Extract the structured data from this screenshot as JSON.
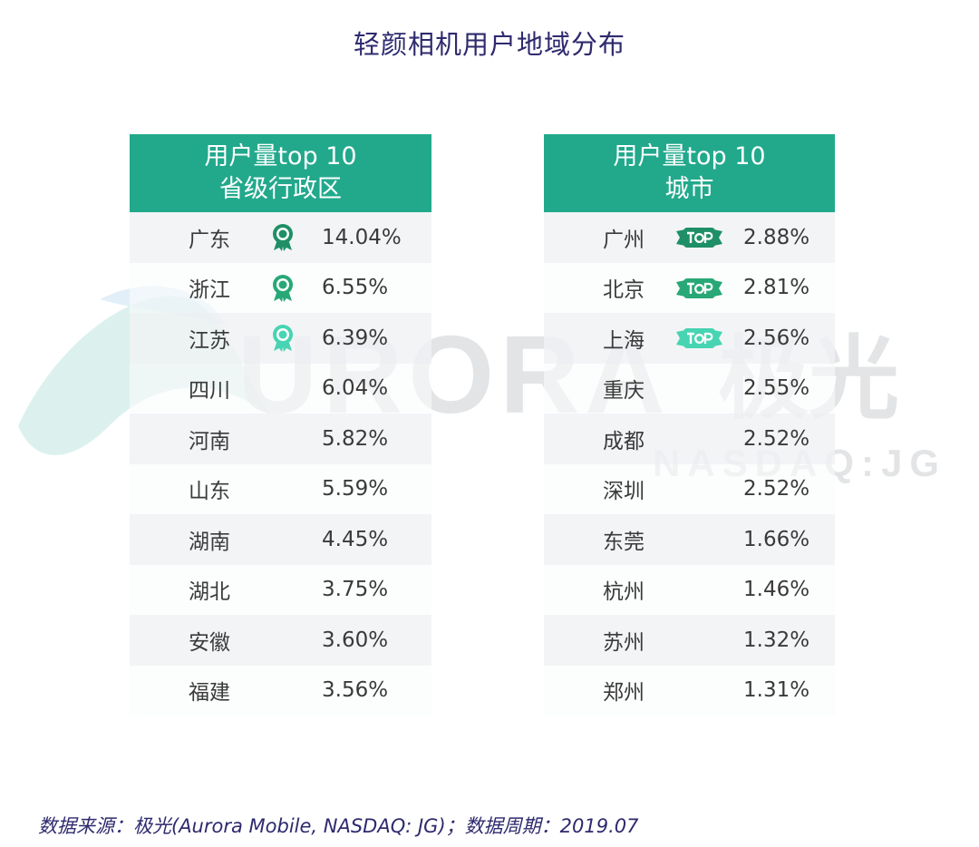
{
  "title": "轻颜相机用户地域分布",
  "watermark": {
    "brand": "URORA",
    "brand_cn": "极光",
    "sub": "NASDAQ:JG"
  },
  "colors": {
    "header": "#22a98c",
    "rank1": "#1e8f66",
    "rank2": "#27a876",
    "rank3": "#47d4b2",
    "title": "#2e2a6e"
  },
  "chart_data": [
    {
      "type": "table",
      "header_line1": "用户量top 10",
      "header_line2": "省级行政区",
      "rows": [
        {
          "name": "广东",
          "value": "14.04%",
          "icon": "medal-icon-rank-1"
        },
        {
          "name": "浙江",
          "value": "6.55%",
          "icon": "medal-icon-rank-2"
        },
        {
          "name": "江苏",
          "value": "6.39%",
          "icon": "medal-icon-rank-3"
        },
        {
          "name": "四川",
          "value": "6.04%"
        },
        {
          "name": "河南",
          "value": "5.82%"
        },
        {
          "name": "山东",
          "value": "5.59%"
        },
        {
          "name": "湖南",
          "value": "4.45%"
        },
        {
          "name": "湖北",
          "value": "3.75%"
        },
        {
          "name": "安徽",
          "value": "3.60%"
        },
        {
          "name": "福建",
          "value": "3.56%"
        }
      ]
    },
    {
      "type": "table",
      "header_line1": "用户量top 10",
      "header_line2": "城市",
      "rows": [
        {
          "name": "广州",
          "value": "2.88%",
          "icon": "top-badge-icon-rank-1"
        },
        {
          "name": "北京",
          "value": "2.81%",
          "icon": "top-badge-icon-rank-2"
        },
        {
          "name": "上海",
          "value": "2.56%",
          "icon": "top-badge-icon-rank-3"
        },
        {
          "name": "重庆",
          "value": "2.55%"
        },
        {
          "name": "成都",
          "value": "2.52%"
        },
        {
          "name": "深圳",
          "value": "2.52%"
        },
        {
          "name": "东莞",
          "value": "1.66%"
        },
        {
          "name": "杭州",
          "value": "1.46%"
        },
        {
          "name": "苏州",
          "value": "1.32%"
        },
        {
          "name": "郑州",
          "value": "1.31%"
        }
      ]
    }
  ],
  "footer": "数据来源：极光(Aurora Mobile, NASDAQ: JG)；数据周期：2019.07"
}
